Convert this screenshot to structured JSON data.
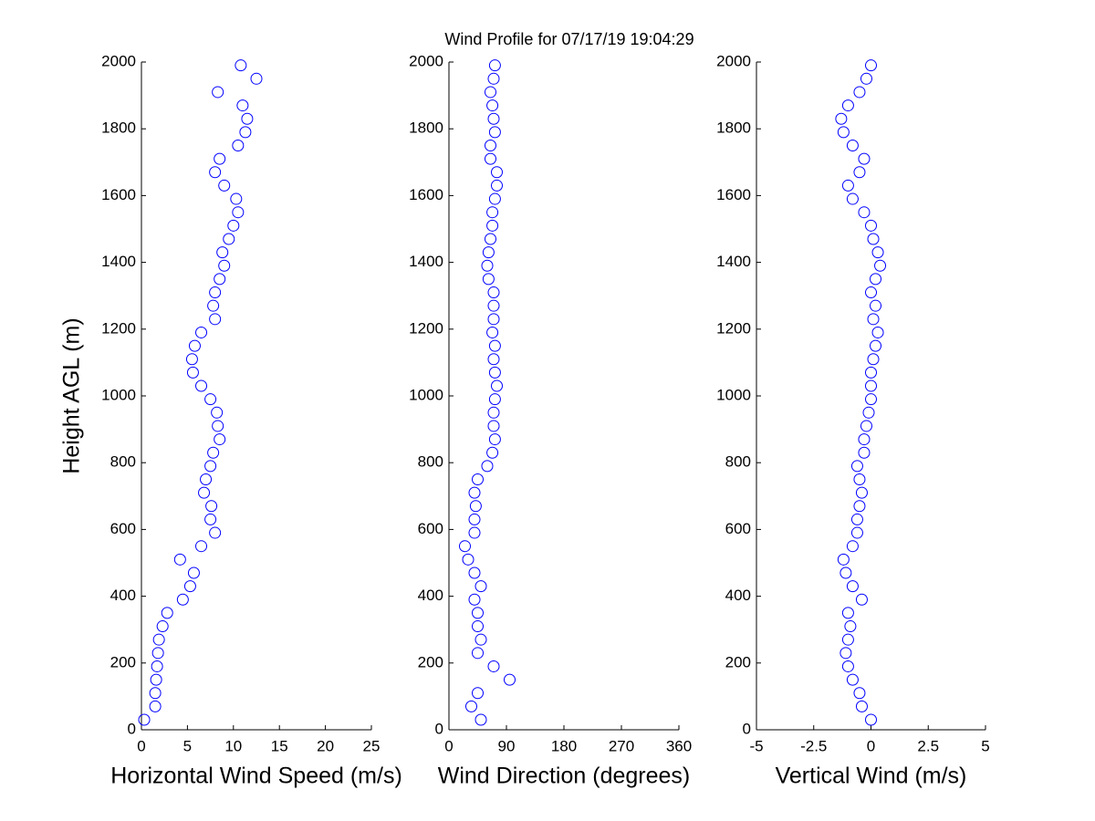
{
  "chart_data": [
    {
      "type": "scatter",
      "title": "Wind Profile for  07/17/19 19:04:29",
      "xlabel": "Horizontal Wind Speed (m/s)",
      "ylabel": "Height AGL (m)",
      "color": "#0000ff",
      "x": [
        0.3,
        1.5,
        1.5,
        1.6,
        1.7,
        1.8,
        1.9,
        2.3,
        2.8,
        4.5,
        5.3,
        5.7,
        4.2,
        6.5,
        8.0,
        7.5,
        7.6,
        6.8,
        7.0,
        7.5,
        7.8,
        8.5,
        8.3,
        8.2,
        7.5,
        6.5,
        5.6,
        5.5,
        5.8,
        6.5,
        8.0,
        7.8,
        8.0,
        8.5,
        9.0,
        8.8,
        9.5,
        10.0,
        10.5,
        10.3,
        9.0,
        8.0,
        8.5,
        10.5,
        11.3,
        11.5,
        11.0,
        8.3,
        12.5,
        10.8
      ],
      "values": [
        30,
        70,
        110,
        150,
        190,
        230,
        270,
        310,
        350,
        390,
        430,
        470,
        510,
        550,
        590,
        630,
        670,
        710,
        750,
        790,
        830,
        870,
        910,
        950,
        990,
        1030,
        1070,
        1110,
        1150,
        1190,
        1230,
        1270,
        1310,
        1350,
        1390,
        1430,
        1470,
        1510,
        1550,
        1590,
        1630,
        1670,
        1710,
        1750,
        1790,
        1830,
        1870,
        1910,
        1950,
        1990
      ],
      "xlim": [
        0,
        25
      ],
      "xticks": [
        0,
        5,
        10,
        15,
        20,
        25
      ],
      "ylim": [
        0,
        2000
      ],
      "yticks": [
        0,
        200,
        400,
        600,
        800,
        1000,
        1200,
        1400,
        1600,
        1800,
        2000
      ]
    },
    {
      "type": "scatter",
      "xlabel": "Wind Direction (degrees)",
      "color": "#0000ff",
      "x": [
        50,
        35,
        45,
        95,
        70,
        45,
        50,
        45,
        45,
        40,
        50,
        40,
        30,
        25,
        40,
        40,
        42,
        40,
        45,
        60,
        68,
        72,
        70,
        70,
        72,
        75,
        72,
        70,
        72,
        68,
        70,
        70,
        70,
        62,
        60,
        62,
        65,
        68,
        68,
        72,
        75,
        75,
        65,
        65,
        72,
        70,
        68,
        65,
        70,
        72
      ],
      "values": [
        30,
        70,
        110,
        150,
        190,
        230,
        270,
        310,
        350,
        390,
        430,
        470,
        510,
        550,
        590,
        630,
        670,
        710,
        750,
        790,
        830,
        870,
        910,
        950,
        990,
        1030,
        1070,
        1110,
        1150,
        1190,
        1230,
        1270,
        1310,
        1350,
        1390,
        1430,
        1470,
        1510,
        1550,
        1590,
        1630,
        1670,
        1710,
        1750,
        1790,
        1830,
        1870,
        1910,
        1950,
        1990
      ],
      "xlim": [
        0,
        360
      ],
      "xticks": [
        0,
        90,
        180,
        270,
        360
      ],
      "ylim": [
        0,
        2000
      ],
      "yticks": [
        0,
        200,
        400,
        600,
        800,
        1000,
        1200,
        1400,
        1600,
        1800,
        2000
      ]
    },
    {
      "type": "scatter",
      "xlabel": "Vertical Wind (m/s)",
      "color": "#0000ff",
      "x": [
        0.0,
        -0.4,
        -0.5,
        -0.8,
        -1.0,
        -1.1,
        -1.0,
        -0.9,
        -1.0,
        -0.4,
        -0.8,
        -1.1,
        -1.2,
        -0.8,
        -0.6,
        -0.6,
        -0.5,
        -0.4,
        -0.5,
        -0.6,
        -0.3,
        -0.3,
        -0.2,
        -0.1,
        0.0,
        0.0,
        0.0,
        0.1,
        0.2,
        0.3,
        0.1,
        0.2,
        0.0,
        0.2,
        0.4,
        0.3,
        0.1,
        0.0,
        -0.3,
        -0.8,
        -1.0,
        -0.5,
        -0.3,
        -0.8,
        -1.2,
        -1.3,
        -1.0,
        -0.5,
        -0.2,
        0.0
      ],
      "values": [
        30,
        70,
        110,
        150,
        190,
        230,
        270,
        310,
        350,
        390,
        430,
        470,
        510,
        550,
        590,
        630,
        670,
        710,
        750,
        790,
        830,
        870,
        910,
        950,
        990,
        1030,
        1070,
        1110,
        1150,
        1190,
        1230,
        1270,
        1310,
        1350,
        1390,
        1430,
        1470,
        1510,
        1550,
        1590,
        1630,
        1670,
        1710,
        1750,
        1790,
        1830,
        1870,
        1910,
        1950,
        1990
      ],
      "xlim": [
        -5,
        5
      ],
      "xticks": [
        -5,
        -2.5,
        0,
        2.5,
        5
      ],
      "ylim": [
        0,
        2000
      ],
      "yticks": [
        0,
        200,
        400,
        600,
        800,
        1000,
        1200,
        1400,
        1600,
        1800,
        2000
      ]
    }
  ]
}
